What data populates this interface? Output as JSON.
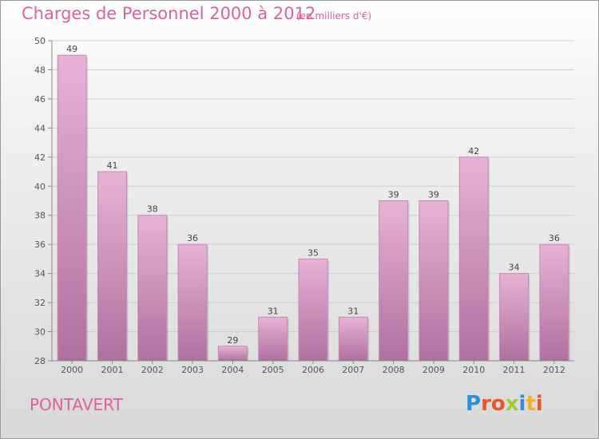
{
  "header": {
    "title": "Charges de Personnel 2000 à 2012",
    "subtitle": "(en milliers d'€)"
  },
  "footer": {
    "commune": "PONTAVERT",
    "logo": "Proxiti",
    "logo_colors": [
      "#2f8fd8",
      "#e8542b",
      "#e8542b",
      "#9bcf2f",
      "#2f8fd8",
      "#f2b01e",
      "#e8542b"
    ]
  },
  "colors": {
    "bar_light": "#e8b2d6",
    "bar_dark": "#b0709e",
    "accent": "#e0609f"
  },
  "chart_data": {
    "type": "bar",
    "title": "Charges de Personnel 2000 à 2012",
    "subtitle": "(en milliers d'€)",
    "categories": [
      "2000",
      "2001",
      "2002",
      "2003",
      "2004",
      "2005",
      "2006",
      "2007",
      "2008",
      "2009",
      "2010",
      "2011",
      "2012"
    ],
    "values": [
      49,
      41,
      38,
      36,
      29,
      31,
      35,
      31,
      39,
      39,
      42,
      34,
      36
    ],
    "ylim": [
      28,
      50
    ],
    "yticks": [
      28,
      30,
      32,
      34,
      36,
      38,
      40,
      42,
      44,
      46,
      48,
      50
    ],
    "grid": true,
    "data_labels": true
  }
}
